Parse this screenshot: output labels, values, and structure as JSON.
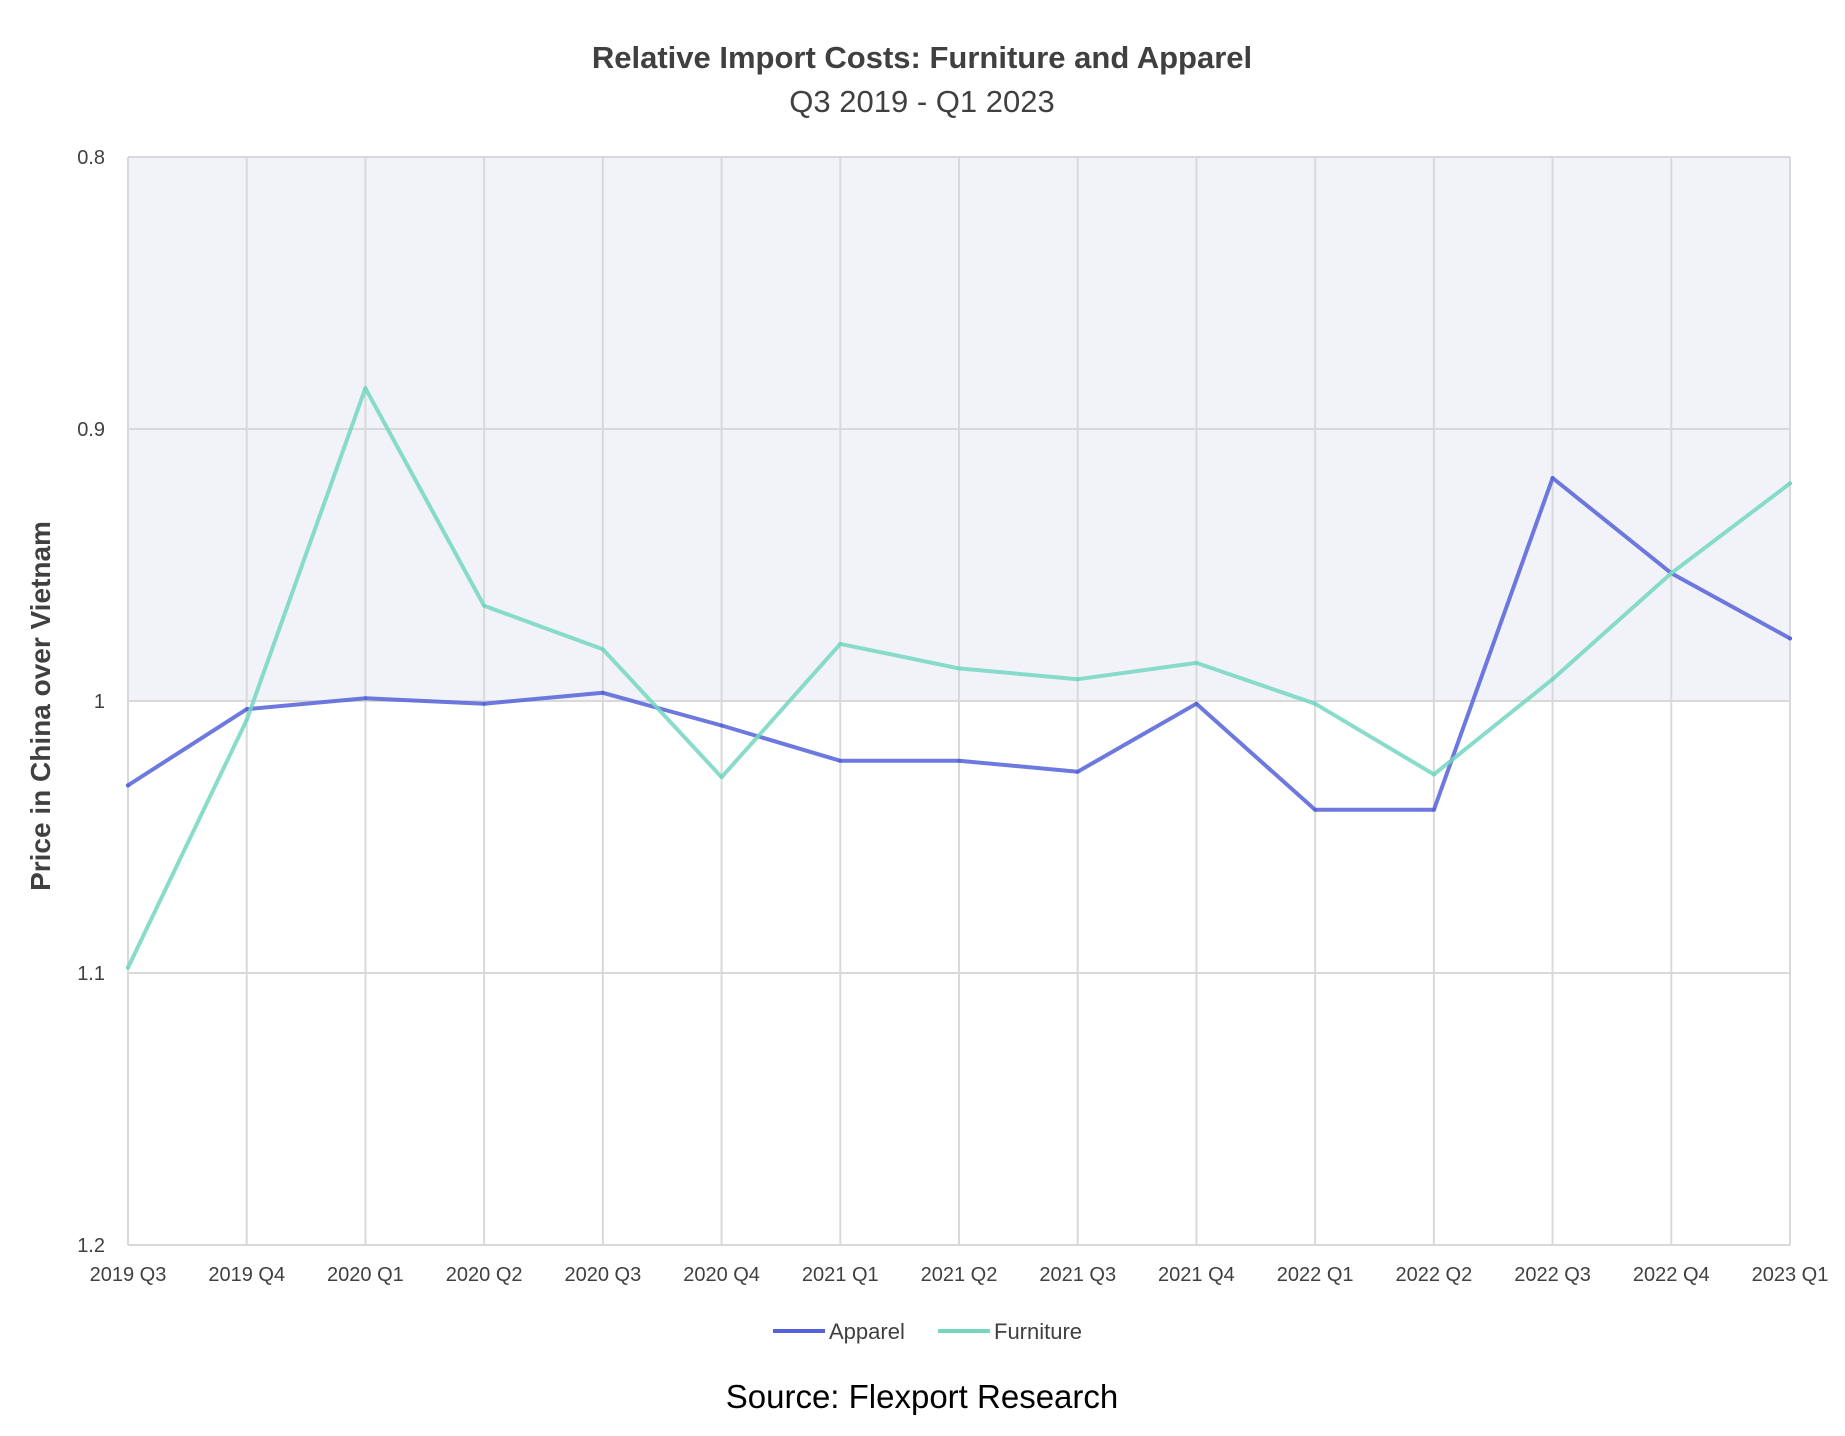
{
  "chart_data": {
    "type": "line",
    "title": "Relative Import Costs: Furniture and Apparel",
    "subtitle": "Q3 2019 - Q1 2023",
    "xlabel": "",
    "ylabel": "Price in China over Vietnam",
    "ylim": [
      1.2,
      0.8
    ],
    "y_axis_inverted": true,
    "yticks": [
      "0.8",
      "0.9",
      "1",
      "1.1",
      "1.2"
    ],
    "categories": [
      "2019 Q3",
      "2019 Q4",
      "2020 Q1",
      "2020 Q2",
      "2020 Q3",
      "2020 Q4",
      "2021 Q1",
      "2021 Q2",
      "2021 Q3",
      "2021 Q4",
      "2022 Q1",
      "2022 Q2",
      "2022 Q3",
      "2022 Q4",
      "2023 Q1"
    ],
    "series": [
      {
        "name": "Apparel",
        "color": "#5561d9",
        "values": [
          1.031,
          1.003,
          0.999,
          1.001,
          0.997,
          1.009,
          1.022,
          1.022,
          1.026,
          1.001,
          1.04,
          1.04,
          0.918,
          0.953,
          0.977
        ]
      },
      {
        "name": "Furniture",
        "color": "#74d6c1",
        "values": [
          1.098,
          1.007,
          0.885,
          0.965,
          0.981,
          1.028,
          0.979,
          0.988,
          0.992,
          0.986,
          1.001,
          1.027,
          0.992,
          0.953,
          0.92
        ]
      }
    ],
    "grid": true,
    "legend_position": "bottom",
    "plot_background": "#f2f3f9",
    "source_note": "Source: Flexport Research"
  }
}
